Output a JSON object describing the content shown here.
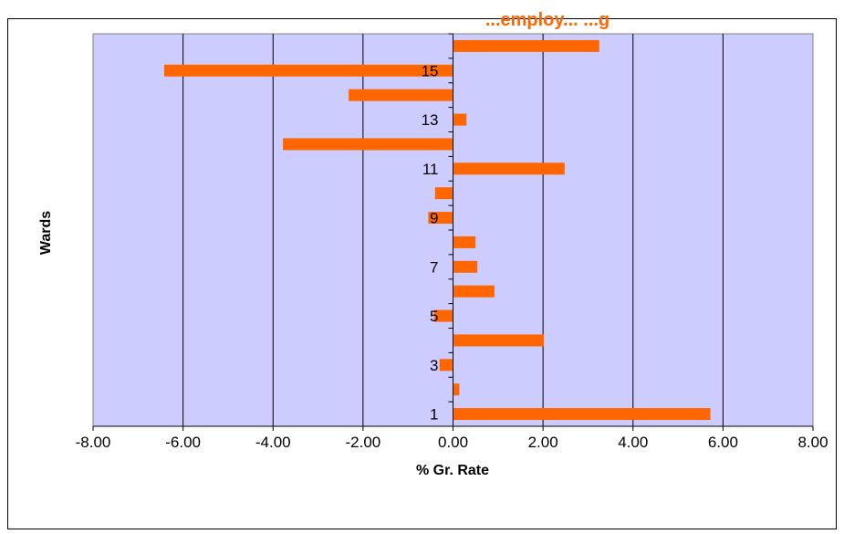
{
  "chart_data": {
    "type": "bar",
    "orientation": "horizontal",
    "title": "...employ... ...g",
    "xlabel": "% Gr. Rate",
    "ylabel": "Wards",
    "xlim": [
      -8,
      8
    ],
    "x_ticks": [
      "-8.00",
      "-6.00",
      "-4.00",
      "-2.00",
      "0.00",
      "2.00",
      "4.00",
      "6.00",
      "8.00"
    ],
    "y_tick_labels": [
      "1",
      "3",
      "5",
      "7",
      "9",
      "11",
      "13",
      "15"
    ],
    "categories": [
      "1",
      "2",
      "3",
      "4",
      "5",
      "6",
      "7",
      "8",
      "9",
      "10",
      "11",
      "12",
      "13",
      "14",
      "15",
      "16"
    ],
    "values": [
      5.72,
      0.14,
      -0.3,
      2.02,
      -0.42,
      0.92,
      0.54,
      0.5,
      -0.55,
      -0.4,
      2.48,
      -3.78,
      0.3,
      -2.32,
      -6.42,
      3.25
    ],
    "grid": true,
    "legend": "none",
    "colors": {
      "bar": "#ff6600",
      "plot_bg": "#ccccff",
      "title": "#ff6600",
      "grid": "#000000"
    }
  }
}
